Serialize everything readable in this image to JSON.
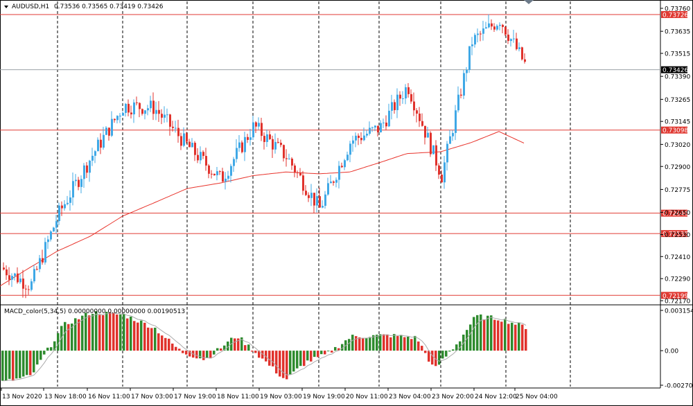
{
  "colors": {
    "up": "#3fa8e6",
    "down": "#e0322c",
    "level": "#e03a33",
    "bid": "#9aa0a6",
    "ma": "#e8322a",
    "grid": "#000000",
    "macd_up": "#2e8b2e",
    "macd_down": "#e0322c",
    "signal": "#aaaaaa"
  },
  "header": {
    "menu_icon": "triangle-down-icon",
    "symbol": "AUDUSD,H1",
    "ohlc": "0.73536 0.73565 0.73419 0.73426"
  },
  "indicator_header": "MACD_color(5,34,5) 0.00000000 0.00000000 0.00190513",
  "chart_data": [
    {
      "type": "candlestick",
      "symbol": "AUDUSD",
      "timeframe": "H1",
      "ylim": [
        0.7217,
        0.7376
      ],
      "y_ticks": [
        "0.73760",
        "0.73635",
        "0.73515",
        "0.73390",
        "0.73265",
        "0.73145",
        "0.73020",
        "0.72900",
        "0.72775",
        "0.72650",
        "0.72530",
        "0.72410",
        "0.72290",
        "0.72170"
      ],
      "horizontal_levels": [
        "0.73726",
        "0.73098",
        "0.72646",
        "0.72535",
        "0.72199"
      ],
      "current_price": "0.73426",
      "anchors_x": [
        0,
        43,
        83,
        130,
        177,
        221,
        270,
        318,
        365,
        413,
        460,
        505,
        547,
        587,
        636,
        680,
        720,
        760
      ],
      "anchors_y": [
        0.7235,
        0.7225,
        0.7264,
        0.7295,
        0.7323,
        0.7322,
        0.7301,
        0.7283,
        0.7312,
        0.7295,
        0.7267,
        0.7304,
        0.7311,
        0.7334,
        0.7285,
        0.7358,
        0.737,
        0.7343
      ],
      "ma_anchors_y": [
        0.7225,
        0.7235,
        0.7244,
        0.7252,
        0.7263,
        0.727,
        0.7278,
        0.7281,
        0.7285,
        0.7287,
        0.7286,
        0.7287,
        0.7292,
        0.7297,
        0.7298,
        0.7303,
        0.7309,
        0.7302
      ]
    },
    {
      "type": "bar",
      "title": "MACD_color(5,34,5)",
      "ylim": [
        -0.002707,
        0.003154
      ],
      "y_ticks": [
        "0.003154",
        "0.00",
        "-0.002707"
      ],
      "anchors_x": [
        0,
        43,
        90,
        130,
        177,
        221,
        260,
        295,
        340,
        380,
        410,
        440,
        470,
        505,
        560,
        600,
        625,
        660,
        685,
        720,
        760
      ],
      "anchors_y": [
        -0.0025,
        -0.002,
        0.002,
        0.003,
        0.0028,
        0.0018,
        -0.0001,
        -0.0007,
        0.0012,
        -0.0008,
        -0.0023,
        -0.0009,
        -0.0003,
        0.0011,
        0.0012,
        0.001,
        -0.0015,
        0.0007,
        0.0027,
        0.0025,
        0.0018
      ]
    }
  ],
  "x_axis": {
    "labels": [
      "13 Nov 2020",
      "13 Nov 18:00",
      "16 Nov 11:00",
      "17 Nov 03:00",
      "17 Nov 19:00",
      "18 Nov 11:00",
      "19 Nov 03:00",
      "19 Nov 19:00",
      "20 Nov 11:00",
      "23 Nov 04:00",
      "23 Nov 20:00",
      "24 Nov 12:00",
      "25 Nov 04:00"
    ]
  }
}
